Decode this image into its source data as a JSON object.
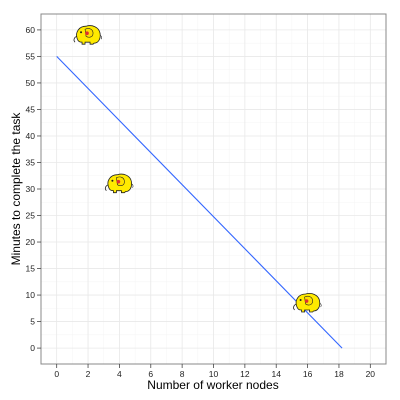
{
  "chart_data": {
    "type": "scatter",
    "title": "",
    "xlabel": "Number of worker nodes",
    "ylabel": "Minutes to complete the task",
    "xlim": [
      -1,
      21
    ],
    "ylim": [
      -3,
      63
    ],
    "x_ticks": [
      0,
      2,
      4,
      6,
      8,
      10,
      12,
      14,
      16,
      18,
      20
    ],
    "y_ticks": [
      0,
      5,
      10,
      15,
      20,
      25,
      30,
      35,
      40,
      45,
      50,
      55,
      60
    ],
    "grid": true,
    "legend": "none",
    "marker": "hadoop-elephant-icon",
    "points": [
      {
        "x": 2,
        "y": 59
      },
      {
        "x": 4,
        "y": 31
      },
      {
        "x": 16,
        "y": 8.5
      }
    ],
    "fit_line": {
      "x": [
        0,
        18.2
      ],
      "y": [
        55,
        0
      ],
      "color": "#3366ff"
    },
    "colors": {
      "panel_border": "#888888",
      "grid_major": "#e8e8e8",
      "grid_minor": "#f4f4f4",
      "elephant_body": "#ffea00",
      "elephant_outline": "#222222",
      "elephant_accent": "#e03030"
    }
  }
}
